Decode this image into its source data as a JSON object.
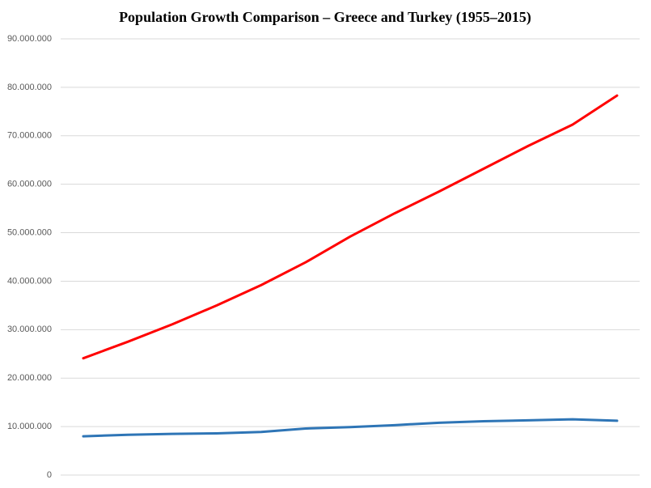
{
  "chart_data": {
    "type": "line",
    "title": "Population Growth Comparison – Greece and Turkey (1955–2015)",
    "series": [
      {
        "color": "#ff0000",
        "values": [
          24100000,
          27500000,
          31100000,
          35000000,
          39200000,
          43900000,
          49200000,
          54000000,
          58500000,
          63200000,
          67900000,
          72300000,
          78300000
        ]
      },
      {
        "color": "#2e75b6",
        "values": [
          8000000,
          8300000,
          8500000,
          8600000,
          8900000,
          9600000,
          9900000,
          10300000,
          10800000,
          11100000,
          11300000,
          11500000,
          11200000
        ]
      }
    ],
    "ylim": [
      0,
      90000000
    ],
    "yticks": [
      0,
      {
        "value": 10000000,
        "label": "10.000.000"
      },
      {
        "value": 20000000,
        "label": "20.000.000"
      },
      {
        "value": 30000000,
        "label": "30.000.000"
      },
      {
        "value": 40000000,
        "label": "40.000.000"
      },
      {
        "value": 50000000,
        "label": "50.000.000"
      },
      {
        "value": 60000000,
        "label": "60.000.000"
      },
      {
        "value": 70000000,
        "label": "70.000.000"
      },
      {
        "value": 80000000,
        "label": "80.000.000"
      },
      {
        "value": 90000000,
        "label": "90.000.000"
      }
    ],
    "grid": true
  }
}
